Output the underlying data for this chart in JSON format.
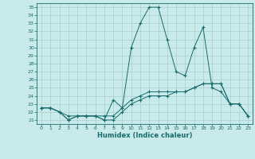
{
  "xlabel": "Humidex (Indice chaleur)",
  "xlim": [
    -0.5,
    23.5
  ],
  "ylim": [
    20.5,
    35.5
  ],
  "yticks": [
    21,
    22,
    23,
    24,
    25,
    26,
    27,
    28,
    29,
    30,
    31,
    32,
    33,
    34,
    35
  ],
  "xticks": [
    0,
    1,
    2,
    3,
    4,
    5,
    6,
    7,
    8,
    9,
    10,
    11,
    12,
    13,
    14,
    15,
    16,
    17,
    18,
    19,
    20,
    21,
    22,
    23
  ],
  "bg_color": "#c8eaea",
  "line_color": "#1a6b6b",
  "grid_color": "#a8cece",
  "line1_x": [
    0,
    1,
    2,
    3,
    4,
    5,
    6,
    7,
    8,
    9,
    10,
    11,
    12,
    13,
    14,
    15,
    16,
    17,
    18,
    19,
    20,
    21,
    22,
    23
  ],
  "line1_y": [
    22.5,
    22.5,
    22.0,
    21.0,
    21.5,
    21.5,
    21.5,
    21.0,
    23.5,
    22.5,
    30.0,
    33.0,
    35.0,
    35.0,
    31.0,
    27.0,
    26.5,
    30.0,
    32.5,
    25.0,
    24.5,
    23.0,
    23.0,
    21.5
  ],
  "line2_x": [
    0,
    1,
    2,
    3,
    4,
    5,
    6,
    7,
    8,
    9,
    10,
    11,
    12,
    13,
    14,
    15,
    16,
    17,
    18,
    19,
    20,
    21,
    22,
    23
  ],
  "line2_y": [
    22.5,
    22.5,
    22.0,
    21.0,
    21.5,
    21.5,
    21.5,
    21.0,
    21.0,
    22.0,
    23.0,
    23.5,
    24.0,
    24.0,
    24.0,
    24.5,
    24.5,
    25.0,
    25.5,
    25.5,
    25.5,
    23.0,
    23.0,
    21.5
  ],
  "line3_x": [
    0,
    1,
    2,
    3,
    4,
    5,
    6,
    7,
    8,
    9,
    10,
    11,
    12,
    13,
    14,
    15,
    16,
    17,
    18,
    19,
    20,
    21,
    22,
    23
  ],
  "line3_y": [
    22.5,
    22.5,
    22.0,
    21.5,
    21.5,
    21.5,
    21.5,
    21.5,
    21.5,
    22.5,
    23.5,
    24.0,
    24.5,
    24.5,
    24.5,
    24.5,
    24.5,
    25.0,
    25.5,
    25.5,
    25.5,
    23.0,
    23.0,
    21.5
  ]
}
